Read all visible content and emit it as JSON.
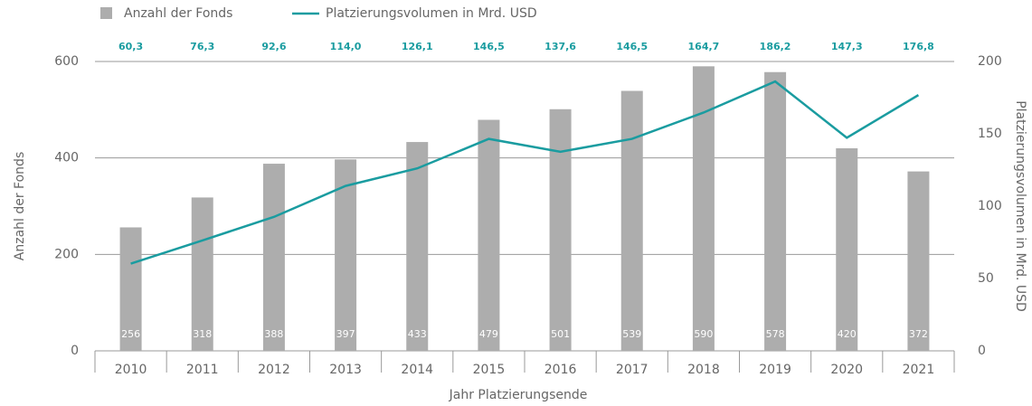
{
  "chart_data": {
    "type": "bar",
    "categories": [
      "2010",
      "2011",
      "2012",
      "2013",
      "2014",
      "2015",
      "2016",
      "2017",
      "2018",
      "2019",
      "2020",
      "2021"
    ],
    "series": [
      {
        "name": "Anzahl der Fonds",
        "type": "bar",
        "color": "#adadad",
        "values": [
          256,
          318,
          388,
          397,
          433,
          479,
          501,
          539,
          590,
          578,
          420,
          372
        ]
      },
      {
        "name": "Platzierungsvolumen in Mrd. USD",
        "type": "line",
        "axis": "y2",
        "color": "#1a9ca0",
        "values": [
          60.3,
          76.3,
          92.6,
          114.0,
          126.1,
          146.5,
          137.6,
          146.5,
          164.7,
          186.2,
          147.3,
          176.8
        ],
        "value_labels": [
          "60,3",
          "76,3",
          "92,6",
          "114,0",
          "126,1",
          "146,5",
          "137,6",
          "146,5",
          "164,7",
          "186,2",
          "147,3",
          "176,8"
        ]
      }
    ],
    "xlabel": "Jahr Platzierungsende",
    "ylabel": "Anzahl der Fonds",
    "y2label": "Platzierungsvolumen in Mrd. USD",
    "ylim": [
      0,
      600
    ],
    "yticks": [
      0,
      200,
      400,
      600
    ],
    "y2lim": [
      0,
      200
    ],
    "y2ticks": [
      0,
      50,
      100,
      150,
      200
    ],
    "grid": true,
    "legend": "top-left"
  }
}
